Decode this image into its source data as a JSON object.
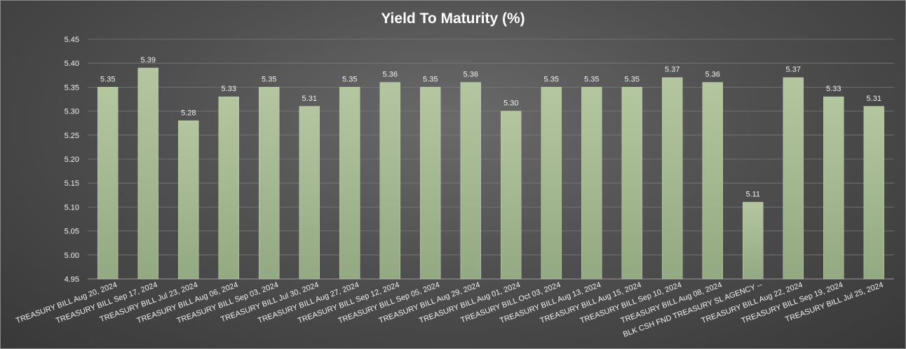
{
  "chart_data": {
    "type": "bar",
    "title": "Yield To Maturity (%)",
    "xlabel": "",
    "ylabel": "",
    "ylim": [
      4.95,
      5.45
    ],
    "yticks": [
      "4.95",
      "5.00",
      "5.05",
      "5.10",
      "5.15",
      "5.20",
      "5.25",
      "5.30",
      "5.35",
      "5.40",
      "5.45"
    ],
    "ytick_values": [
      4.95,
      5.0,
      5.05,
      5.1,
      5.15,
      5.2,
      5.25,
      5.3,
      5.35,
      5.4,
      5.45
    ],
    "grid": true,
    "bar_color": "#a8bb92",
    "categories": [
      "TREASURY BILL Aug 20, 2024",
      "TREASURY BILL Sep 17, 2024",
      "TREASURY BILL Jul 23, 2024",
      "TREASURY BILL Aug 06, 2024",
      "TREASURY BILL Sep 03, 2024",
      "TREASURY BILL Jul 30, 2024",
      "TREASURY BILL Aug 27, 2024",
      "TREASURY BILL Sep 12, 2024",
      "TREASURY BILL Sep 05, 2024",
      "TREASURY BILL Aug 29, 2024",
      "TREASURY BILL Aug 01, 2024",
      "TREASURY BILL Oct 03, 2024",
      "TREASURY BILL Aug 13, 2024",
      "TREASURY BILL Aug 15, 2024",
      "TREASURY BILL Sep 10, 2024",
      "TREASURY BILL Aug 08, 2024",
      "BLK CSH FND TREASURY SL AGENCY --",
      "TREASURY BILL Aug 22, 2024",
      "TREASURY BILL Sep 19, 2024",
      "TREASURY BILL Jul 25, 2024"
    ],
    "values": [
      5.35,
      5.39,
      5.28,
      5.33,
      5.35,
      5.31,
      5.35,
      5.36,
      5.35,
      5.36,
      5.3,
      5.35,
      5.35,
      5.35,
      5.37,
      5.36,
      5.11,
      5.37,
      5.33,
      5.31
    ],
    "data_labels": [
      "5.35",
      "5.39",
      "5.28",
      "5.33",
      "5.35",
      "5.31",
      "5.35",
      "5.36",
      "5.35",
      "5.36",
      "5.30",
      "5.35",
      "5.35",
      "5.35",
      "5.37",
      "5.36",
      "5.11",
      "5.37",
      "5.33",
      "5.31"
    ]
  }
}
